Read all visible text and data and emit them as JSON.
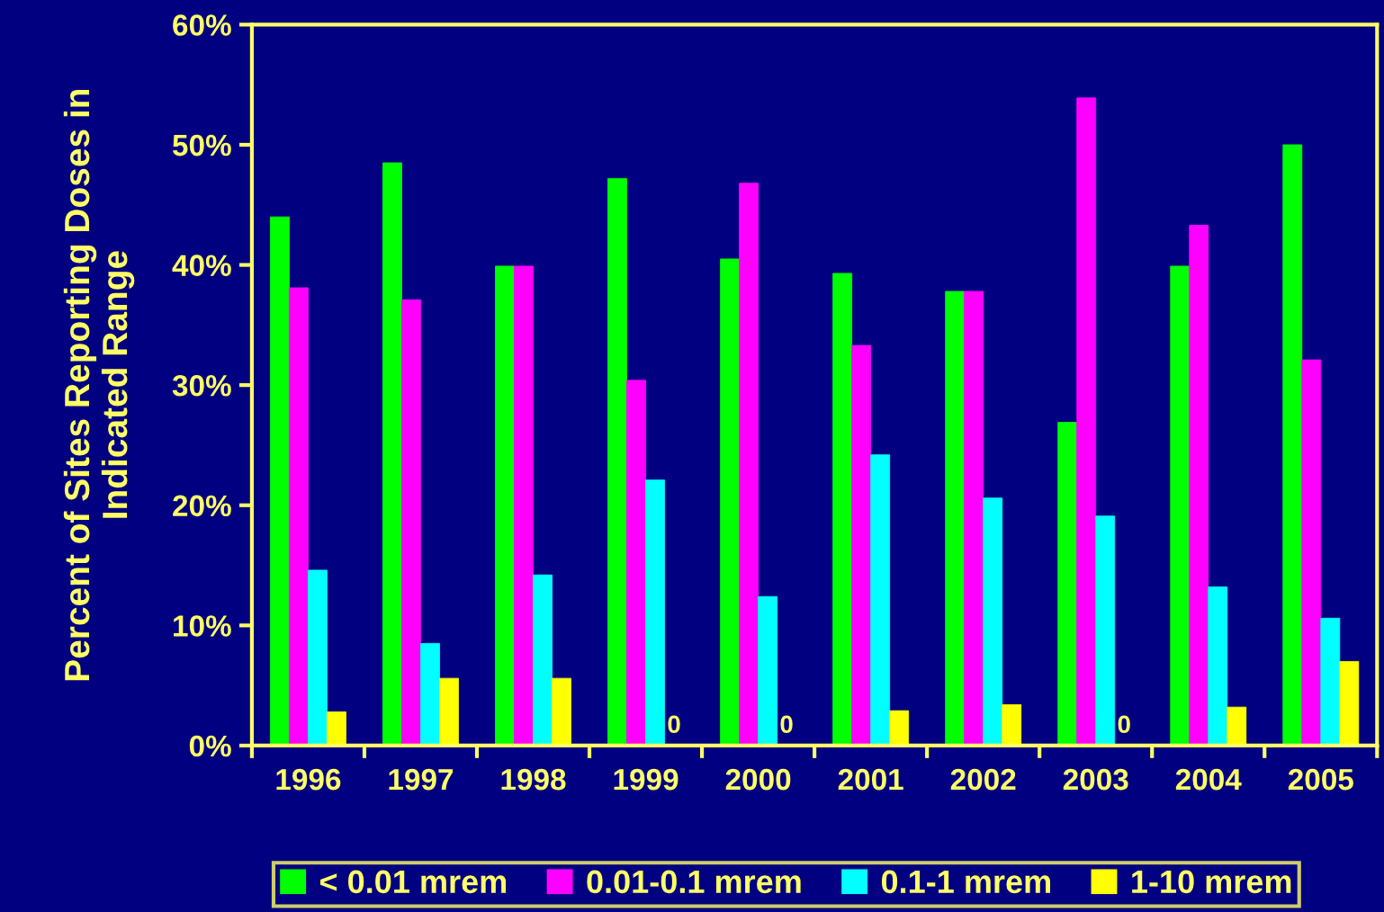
{
  "chart_data": {
    "type": "bar",
    "ylabel": "Percent of Sites Reporting Doses in\nIndicated Range",
    "categories": [
      "1996",
      "1997",
      "1998",
      "1999",
      "2000",
      "2001",
      "2002",
      "2003",
      "2004",
      "2005"
    ],
    "series": [
      {
        "name": "< 0.01 mrem",
        "color": "#00ff00",
        "values": [
          44.0,
          48.5,
          39.9,
          47.2,
          40.5,
          39.3,
          37.8,
          26.9,
          39.9,
          50.0
        ]
      },
      {
        "name": "0.01-0.1 mrem",
        "color": "#ff00ff",
        "values": [
          38.1,
          37.1,
          39.9,
          30.4,
          46.8,
          33.3,
          37.8,
          53.9,
          43.3,
          32.1
        ]
      },
      {
        "name": "0.1-1 mrem",
        "color": "#00ffff",
        "values": [
          14.6,
          8.5,
          14.2,
          22.1,
          12.4,
          24.2,
          20.6,
          19.1,
          13.2,
          10.6
        ]
      },
      {
        "name": "1-10 mrem",
        "color": "#ffff00",
        "values": [
          2.8,
          5.6,
          5.6,
          0,
          0,
          2.9,
          3.4,
          0,
          3.2,
          7.0
        ],
        "value_labels": [
          null,
          null,
          null,
          "0",
          "0",
          null,
          null,
          "0",
          null,
          null
        ]
      }
    ],
    "ylim": [
      0,
      60
    ],
    "yticks": [
      {
        "value": 0,
        "label": "0%"
      },
      {
        "value": 10,
        "label": "10%"
      },
      {
        "value": 20,
        "label": "20%"
      },
      {
        "value": 30,
        "label": "30%"
      },
      {
        "value": 40,
        "label": "40%"
      },
      {
        "value": 50,
        "label": "50%"
      },
      {
        "value": 60,
        "label": "60%"
      }
    ],
    "grid": false,
    "legend": "bottom"
  }
}
